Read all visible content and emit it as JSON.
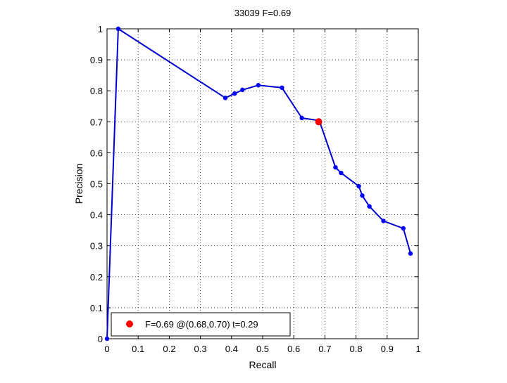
{
  "chart_data": {
    "type": "line",
    "title": "33039 F=0.69",
    "xlabel": "Recall",
    "ylabel": "Precision",
    "xlim": [
      0,
      1
    ],
    "ylim": [
      0,
      1
    ],
    "x_ticks": [
      "0",
      "0.1",
      "0.2",
      "0.3",
      "0.4",
      "0.5",
      "0.6",
      "0.7",
      "0.8",
      "0.9",
      "1"
    ],
    "y_ticks": [
      "0",
      "0.1",
      "0.2",
      "0.3",
      "0.4",
      "0.5",
      "0.6",
      "0.7",
      "0.8",
      "0.9",
      "1"
    ],
    "grid": true,
    "grid_style": "dotted",
    "legend_position": "bottom-left",
    "series": [
      {
        "color": "#0000cc",
        "marker_color": "#0000ff",
        "x": [
          0.0,
          0.036,
          0.38,
          0.41,
          0.435,
          0.486,
          0.562,
          0.626,
          0.682,
          0.734,
          0.752,
          0.809,
          0.82,
          0.843,
          0.888,
          0.952,
          0.975
        ],
        "y": [
          0.0,
          1.0,
          0.777,
          0.791,
          0.803,
          0.818,
          0.81,
          0.712,
          0.704,
          0.553,
          0.535,
          0.492,
          0.462,
          0.427,
          0.38,
          0.356,
          0.275
        ]
      }
    ],
    "highlight_point": {
      "x": 0.68,
      "y": 0.7,
      "color": "#ff0000",
      "label": "F=0.69 @(0.68,0.70) t=0.29"
    }
  }
}
